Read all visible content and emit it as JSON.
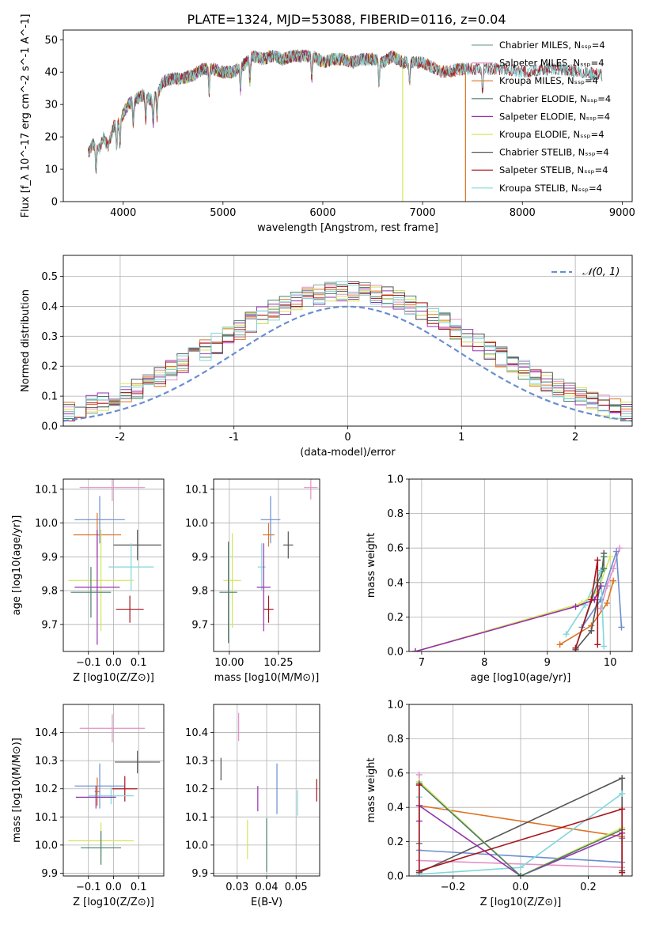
{
  "figure_title": "PLATE=1324, MJD=53088, FIBERID=0116, z=0.04",
  "colors": [
    "#7cab9c",
    "#e291c6",
    "#dc7325",
    "#4a7e6c",
    "#9530ad",
    "#d5e45a",
    "#555555",
    "#a8141c",
    "#7fd7dc"
  ],
  "chart_data": [
    {
      "id": "spectrum",
      "type": "line",
      "title": "PLATE=1324, MJD=53088, FIBERID=0116, z=0.04",
      "xlabel": "wavelength [Angstrom, rest frame]",
      "ylabel": "Flux [f_λ 10^-17 erg cm^-2 s^-1 A^-1]",
      "xlim": [
        3400,
        9100
      ],
      "ylim": [
        0,
        53
      ],
      "xticks": [
        4000,
        5000,
        6000,
        7000,
        8000,
        9000
      ],
      "yticks": [
        0,
        10,
        20,
        30,
        40,
        50
      ],
      "grid": false,
      "legend_position": "top-right",
      "continuum": {
        "x": [
          3650,
          3700,
          3760,
          3800,
          3850,
          3900,
          3950,
          4000,
          4050,
          4100,
          4200,
          4300,
          4400,
          4500,
          4600,
          4700,
          4800,
          4900,
          5000,
          5100,
          5200,
          5300,
          5400,
          5500,
          5600,
          5700,
          5800,
          5900,
          6000,
          6100,
          6200,
          6300,
          6400,
          6500,
          6600,
          6700,
          6800,
          6900,
          7000,
          7200,
          7400,
          7600,
          7800,
          8000,
          8200,
          8400,
          8600,
          8800
        ],
        "y": [
          15,
          18,
          16,
          20,
          17,
          23,
          24,
          27,
          30,
          31,
          33,
          31,
          37,
          38,
          38,
          39,
          41,
          41,
          40,
          40,
          42,
          45,
          44,
          45,
          44,
          45,
          45,
          45,
          43,
          44,
          44,
          43,
          44,
          44,
          43,
          45,
          43,
          43,
          43,
          40,
          41,
          41,
          41,
          40,
          41,
          41,
          40,
          39
        ]
      },
      "series": [
        {
          "name": "Chabrier MILES, N_SSP=4",
          "x_range": [
            3650,
            7430
          ]
        },
        {
          "name": "Salpeter MILES, N_SSP=4",
          "x_range": [
            3650,
            7430
          ]
        },
        {
          "name": "Kroupa MILES, N_SSP=4",
          "x_range": [
            3650,
            7430
          ]
        },
        {
          "name": "Chabrier ELODIE, N_SSP=4",
          "x_range": [
            3900,
            6800
          ]
        },
        {
          "name": "Salpeter ELODIE, N_SSP=4",
          "x_range": [
            3900,
            6800
          ]
        },
        {
          "name": "Kroupa ELODIE, N_SSP=4",
          "x_range": [
            3900,
            6800
          ]
        },
        {
          "name": "Chabrier STELIB, N_SSP=4",
          "x_range": [
            3650,
            8800
          ]
        },
        {
          "name": "Salpeter STELIB, N_SSP=4",
          "x_range": [
            3650,
            8800
          ]
        },
        {
          "name": "Kroupa STELIB, N_SSP=4",
          "x_range": [
            3650,
            8800
          ]
        }
      ]
    },
    {
      "id": "residuals",
      "type": "histogram",
      "xlabel": "(data-model)/error",
      "ylabel": "Normed distribution",
      "xlim": [
        -2.5,
        2.5
      ],
      "ylim": [
        0,
        0.57
      ],
      "xticks": [
        -2,
        -1,
        0,
        1,
        2
      ],
      "yticks": [
        0.0,
        0.1,
        0.2,
        0.3,
        0.4,
        0.5
      ],
      "grid": true,
      "legend": [
        {
          "label": "𝒩(0, 1)",
          "style": "dashed",
          "color": "#6a8ed0"
        }
      ],
      "legend_position": "top-right",
      "bin_width": 0.1
    },
    {
      "id": "age-vs-Z",
      "type": "errorbar",
      "xlabel": "Z [log10(Z/Z⊙)]",
      "ylabel": "age  [log10(age/yr)]",
      "xlim": [
        -0.2,
        0.2
      ],
      "ylim": [
        9.62,
        10.13
      ],
      "xticks": [
        -0.1,
        0.0,
        0.1
      ],
      "xticklabels": [
        "−0.1",
        "0.0",
        "0.1"
      ],
      "yticks": [
        9.7,
        9.8,
        9.9,
        10.0,
        10.1
      ],
      "grid": true,
      "points": [
        {
          "x": -0.005,
          "y": 10.105,
          "xerr": 0.13,
          "yerr": 0.04,
          "color": "#e291c6"
        },
        {
          "x": -0.055,
          "y": 10.01,
          "xerr": 0.1,
          "yerr": 0.07,
          "color": "#6a8ed0"
        },
        {
          "x": -0.065,
          "y": 9.965,
          "xerr": 0.095,
          "yerr": 0.065,
          "color": "#dc7325"
        },
        {
          "x": 0.095,
          "y": 9.935,
          "xerr": 0.095,
          "yerr": 0.045,
          "color": "#555555"
        },
        {
          "x": 0.07,
          "y": 9.87,
          "xerr": 0.09,
          "yerr": 0.07,
          "color": "#7fd7dc"
        },
        {
          "x": -0.05,
          "y": 9.83,
          "xerr": 0.13,
          "yerr": 0.15,
          "color": "#d5e45a"
        },
        {
          "x": -0.065,
          "y": 9.81,
          "xerr": 0.09,
          "yerr": 0.17,
          "color": "#9530ad"
        },
        {
          "x": -0.09,
          "y": 9.795,
          "xerr": 0.08,
          "yerr": 0.075,
          "color": "#4a7e6c"
        },
        {
          "x": 0.065,
          "y": 9.745,
          "xerr": 0.055,
          "yerr": 0.04,
          "color": "#a8141c"
        }
      ]
    },
    {
      "id": "age-vs-mass",
      "type": "errorbar",
      "xlabel": "mass [log10(M/M⊙)]",
      "ylabel": "",
      "xlim": [
        9.92,
        10.46
      ],
      "ylim": [
        9.62,
        10.13
      ],
      "xticks": [
        10.0,
        10.25
      ],
      "xticklabels": [
        "10.00",
        "10.25"
      ],
      "yticks": [
        9.7,
        9.8,
        9.9,
        10.0,
        10.1
      ],
      "grid": true,
      "points": [
        {
          "x": 10.415,
          "y": 10.105,
          "xerr": 0.035,
          "yerr": 0.035,
          "color": "#e291c6"
        },
        {
          "x": 10.21,
          "y": 10.01,
          "xerr": 0.05,
          "yerr": 0.07,
          "color": "#6a8ed0"
        },
        {
          "x": 10.2,
          "y": 9.965,
          "xerr": 0.03,
          "yerr": 0.035,
          "color": "#dc7325"
        },
        {
          "x": 10.3,
          "y": 9.935,
          "xerr": 0.025,
          "yerr": 0.04,
          "color": "#555555"
        },
        {
          "x": 10.165,
          "y": 9.87,
          "xerr": 0.02,
          "yerr": 0.07,
          "color": "#7fd7dc"
        },
        {
          "x": 10.015,
          "y": 9.83,
          "xerr": 0.045,
          "yerr": 0.14,
          "color": "#d5e45a"
        },
        {
          "x": 10.175,
          "y": 9.81,
          "xerr": 0.035,
          "yerr": 0.13,
          "color": "#9530ad"
        },
        {
          "x": 9.995,
          "y": 9.795,
          "xerr": 0.045,
          "yerr": 0.15,
          "color": "#4a7e6c"
        },
        {
          "x": 10.2,
          "y": 9.745,
          "xerr": 0.025,
          "yerr": 0.04,
          "color": "#a8141c"
        }
      ]
    },
    {
      "id": "mass-weight-vs-age",
      "type": "line",
      "xlabel": "age  [log10(age/yr)]",
      "ylabel": "mass weight",
      "xlim": [
        6.8,
        10.35
      ],
      "ylim": [
        0,
        1
      ],
      "xticks": [
        7,
        8,
        9,
        10
      ],
      "yticks": [
        0.0,
        0.2,
        0.4,
        0.6,
        0.8,
        1.0
      ],
      "grid": true,
      "series": [
        {
          "color": "#e291c6",
          "x": [
            9.85,
            9.95,
            10.05,
            10.15
          ],
          "y": [
            0.25,
            0.38,
            0.48,
            0.6
          ]
        },
        {
          "color": "#6a8ed0",
          "x": [
            9.55,
            9.85,
            10.1,
            10.18
          ],
          "y": [
            0.14,
            0.3,
            0.58,
            0.14
          ]
        },
        {
          "color": "#dc7325",
          "x": [
            9.2,
            9.7,
            9.95,
            10.05
          ],
          "y": [
            0.04,
            0.15,
            0.28,
            0.41
          ]
        },
        {
          "color": "#555555",
          "x": [
            9.45,
            9.7,
            9.85,
            9.9
          ],
          "y": [
            0.01,
            0.12,
            0.4,
            0.57
          ]
        },
        {
          "color": "#7fd7dc",
          "x": [
            9.3,
            9.6,
            9.85,
            9.9
          ],
          "y": [
            0.1,
            0.27,
            0.47,
            0.03
          ]
        },
        {
          "color": "#d5e45a",
          "x": [
            6.9,
            9.55,
            9.8,
            10.0
          ],
          "y": [
            0.0,
            0.28,
            0.35,
            0.55
          ]
        },
        {
          "color": "#9530ad",
          "x": [
            6.9,
            9.45,
            9.75,
            9.85
          ],
          "y": [
            0.0,
            0.26,
            0.3,
            0.38
          ]
        },
        {
          "color": "#4a7e6c",
          "x": [
            9.45,
            9.8,
            9.9,
            9.9
          ],
          "y": [
            0.02,
            0.4,
            0.48,
            0.55
          ]
        },
        {
          "color": "#a8141c",
          "x": [
            9.45,
            9.7,
            9.8,
            9.8
          ],
          "y": [
            0.02,
            0.3,
            0.53,
            0.04
          ]
        }
      ]
    },
    {
      "id": "mass-vs-Z",
      "type": "errorbar",
      "xlabel": "Z [log10(Z/Z⊙)]",
      "ylabel": "mass [log10(M/M⊙)]",
      "xlim": [
        -0.2,
        0.2
      ],
      "ylim": [
        9.89,
        10.5
      ],
      "xticks": [
        -0.1,
        0.0,
        0.1
      ],
      "xticklabels": [
        "−0.1",
        "0.0",
        "0.1"
      ],
      "yticks": [
        9.9,
        10.0,
        10.1,
        10.2,
        10.3,
        10.4
      ],
      "grid": true,
      "points": [
        {
          "x": -0.005,
          "y": 10.415,
          "xerr": 0.13,
          "yerr": 0.05,
          "color": "#e291c6"
        },
        {
          "x": 0.095,
          "y": 10.295,
          "xerr": 0.09,
          "yerr": 0.04,
          "color": "#555555"
        },
        {
          "x": -0.055,
          "y": 10.21,
          "xerr": 0.1,
          "yerr": 0.08,
          "color": "#6a8ed0"
        },
        {
          "x": 0.045,
          "y": 10.2,
          "xerr": 0.05,
          "yerr": 0.045,
          "color": "#a8141c"
        },
        {
          "x": -0.065,
          "y": 10.19,
          "xerr": 0.01,
          "yerr": 0.05,
          "color": "#dc7325"
        },
        {
          "x": -0.01,
          "y": 10.175,
          "xerr": 0.09,
          "yerr": 0.03,
          "color": "#7fd7dc"
        },
        {
          "x": -0.07,
          "y": 10.17,
          "xerr": 0.08,
          "yerr": 0.04,
          "color": "#9530ad"
        },
        {
          "x": -0.05,
          "y": 10.015,
          "xerr": 0.13,
          "yerr": 0.065,
          "color": "#d5e45a"
        },
        {
          "x": -0.05,
          "y": 9.99,
          "xerr": 0.08,
          "yerr": 0.06,
          "color": "#4a7e6c"
        }
      ]
    },
    {
      "id": "mass-vs-EBV",
      "type": "errorbar",
      "xlabel": "E(B-V)",
      "ylabel": "",
      "xlim": [
        0.022,
        0.058
      ],
      "ylim": [
        9.89,
        10.5
      ],
      "xticks": [
        0.03,
        0.04,
        0.05
      ],
      "xticklabels": [
        "0.03",
        "0.04",
        "0.05"
      ],
      "yticks": [
        9.9,
        10.0,
        10.1,
        10.2,
        10.3,
        10.4
      ],
      "grid": true,
      "points": [
        {
          "x": 0.0305,
          "y": 10.42,
          "xerr": 0,
          "yerr": 0.05,
          "color": "#e291c6"
        },
        {
          "x": 0.0245,
          "y": 10.27,
          "xerr": 0,
          "yerr": 0.04,
          "color": "#555555"
        },
        {
          "x": 0.0435,
          "y": 10.2,
          "xerr": 0,
          "yerr": 0.09,
          "color": "#6a8ed0"
        },
        {
          "x": 0.057,
          "y": 10.195,
          "xerr": 0,
          "yerr": 0.04,
          "color": "#a8141c"
        },
        {
          "x": 0.037,
          "y": 10.165,
          "xerr": 0,
          "yerr": 0.045,
          "color": "#9530ad"
        },
        {
          "x": 0.0505,
          "y": 10.15,
          "xerr": 0,
          "yerr": 0.045,
          "color": "#7fd7dc"
        },
        {
          "x": 0.0335,
          "y": 10.02,
          "xerr": 0,
          "yerr": 0.07,
          "color": "#d5e45a"
        },
        {
          "x": 0.04,
          "y": 10.0,
          "xerr": 0,
          "yerr": 0.095,
          "color": "#4a7e6c"
        }
      ]
    },
    {
      "id": "mass-weight-vs-Z",
      "type": "line",
      "xlabel": "Z [log10(Z/Z⊙)]",
      "ylabel": "mass weight",
      "xlim": [
        -0.33,
        0.33
      ],
      "ylim": [
        0,
        1
      ],
      "xticks": [
        -0.2,
        0.0,
        0.2
      ],
      "xticklabels": [
        "−0.2",
        "0.0",
        "0.2"
      ],
      "yticks": [
        0.0,
        0.2,
        0.4,
        0.6,
        0.8,
        1.0
      ],
      "grid": true,
      "series": [
        {
          "color": "#e291c6",
          "x": [
            -0.3,
            -0.3,
            0.3
          ],
          "y": [
            0.59,
            0.09,
            0.05
          ]
        },
        {
          "color": "#6a8ed0",
          "x": [
            -0.3,
            0.3,
            0.3
          ],
          "y": [
            0.15,
            0.08,
            0.22
          ]
        },
        {
          "color": "#dc7325",
          "x": [
            -0.3,
            0.3,
            0.3
          ],
          "y": [
            0.41,
            0.23,
            0.02
          ]
        },
        {
          "color": "#555555",
          "x": [
            -0.3,
            0.3,
            0.3
          ],
          "y": [
            0.02,
            0.57,
            0.03
          ]
        },
        {
          "color": "#7fd7dc",
          "x": [
            -0.3,
            -0.3,
            0.0,
            0.3
          ],
          "y": [
            0.46,
            0.01,
            0.05,
            0.48
          ]
        },
        {
          "color": "#d5e45a",
          "x": [
            -0.3,
            0.0,
            0.3
          ],
          "y": [
            0.55,
            0.0,
            0.28
          ]
        },
        {
          "color": "#9530ad",
          "x": [
            -0.3,
            -0.3,
            0.0,
            0.3
          ],
          "y": [
            0.32,
            0.41,
            0.0,
            0.25
          ]
        },
        {
          "color": "#4a7e6c",
          "x": [
            -0.3,
            -0.3,
            0.0,
            0.3
          ],
          "y": [
            0.19,
            0.54,
            0.0,
            0.27
          ]
        },
        {
          "color": "#a8141c",
          "x": [
            -0.3,
            -0.3,
            0.3,
            0.3
          ],
          "y": [
            0.53,
            0.03,
            0.39,
            0.02
          ]
        }
      ]
    }
  ]
}
